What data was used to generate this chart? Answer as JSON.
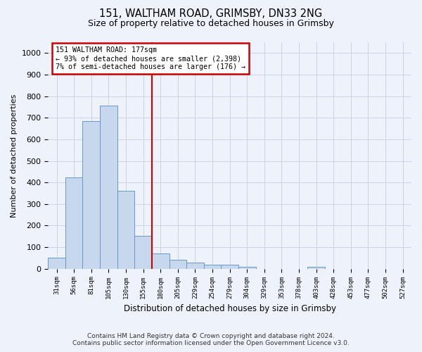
{
  "title1": "151, WALTHAM ROAD, GRIMSBY, DN33 2NG",
  "title2": "Size of property relative to detached houses in Grimsby",
  "xlabel": "Distribution of detached houses by size in Grimsby",
  "ylabel": "Number of detached properties",
  "categories": [
    "31sqm",
    "56sqm",
    "81sqm",
    "105sqm",
    "130sqm",
    "155sqm",
    "180sqm",
    "205sqm",
    "229sqm",
    "254sqm",
    "279sqm",
    "304sqm",
    "329sqm",
    "353sqm",
    "378sqm",
    "403sqm",
    "428sqm",
    "453sqm",
    "477sqm",
    "502sqm",
    "527sqm"
  ],
  "values": [
    52,
    422,
    685,
    757,
    360,
    153,
    72,
    40,
    27,
    17,
    17,
    10,
    0,
    0,
    0,
    10,
    0,
    0,
    0,
    0,
    0
  ],
  "bar_color": "#c8d8ec",
  "bar_edge_color": "#6699cc",
  "vline_x": 5.5,
  "vline_color": "#cc0000",
  "annotation_text_line1": "151 WALTHAM ROAD: 177sqm",
  "annotation_text_line2": "← 93% of detached houses are smaller (2,398)",
  "annotation_text_line3": "7% of semi-detached houses are larger (176) →",
  "annotation_box_color": "#ffffff",
  "annotation_box_edge_color": "#cc0000",
  "ylim": [
    0,
    1050
  ],
  "yticks": [
    0,
    100,
    200,
    300,
    400,
    500,
    600,
    700,
    800,
    900,
    1000
  ],
  "footer1": "Contains HM Land Registry data © Crown copyright and database right 2024.",
  "footer2": "Contains public sector information licensed under the Open Government Licence v3.0.",
  "bg_color": "#eef2fa",
  "grid_color": "#c8cfe0"
}
